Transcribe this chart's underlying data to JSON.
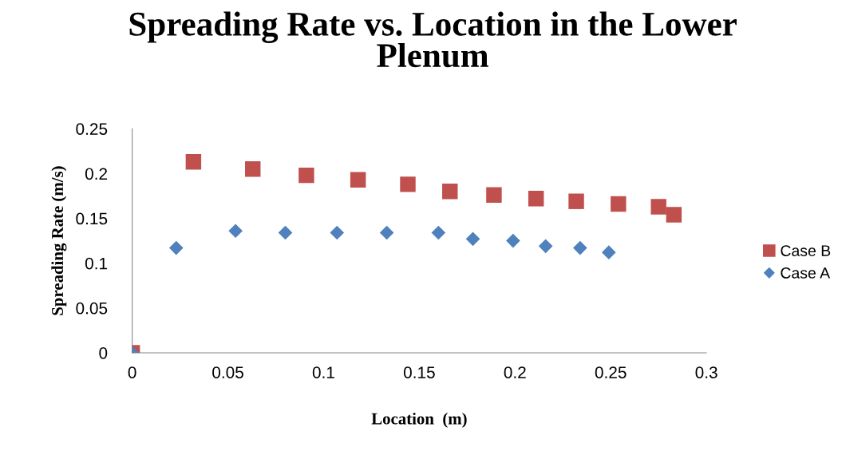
{
  "chart_data": {
    "type": "scatter",
    "title": "Spreading Rate vs. Location in the Lower Plenum",
    "xlabel": "Location  (m)",
    "ylabel": "Spreading Rate (m/s)",
    "xlim": [
      0,
      0.3
    ],
    "xticks": [
      0,
      0.05,
      0.1,
      0.15,
      0.2,
      0.25,
      0.3
    ],
    "ylim": [
      0,
      0.25
    ],
    "yticks": [
      0,
      0.05,
      0.1,
      0.15,
      0.2,
      0.25
    ],
    "grid": false,
    "legend": "right",
    "series": [
      {
        "name": "Case B",
        "color": "#c0504d",
        "marker": "square",
        "x": [
          0,
          0.032,
          0.063,
          0.091,
          0.118,
          0.144,
          0.166,
          0.189,
          0.211,
          0.232,
          0.254,
          0.275,
          0.283
        ],
        "values": [
          0,
          0.213,
          0.205,
          0.198,
          0.193,
          0.188,
          0.18,
          0.176,
          0.172,
          0.169,
          0.166,
          0.163,
          0.154
        ]
      },
      {
        "name": "Case A",
        "color": "#4f81bd",
        "marker": "diamond",
        "x": [
          0,
          0.023,
          0.054,
          0.08,
          0.107,
          0.133,
          0.16,
          0.178,
          0.199,
          0.216,
          0.234,
          0.249
        ],
        "values": [
          0,
          0.117,
          0.136,
          0.134,
          0.134,
          0.134,
          0.134,
          0.127,
          0.125,
          0.119,
          0.117,
          0.112
        ]
      }
    ]
  }
}
